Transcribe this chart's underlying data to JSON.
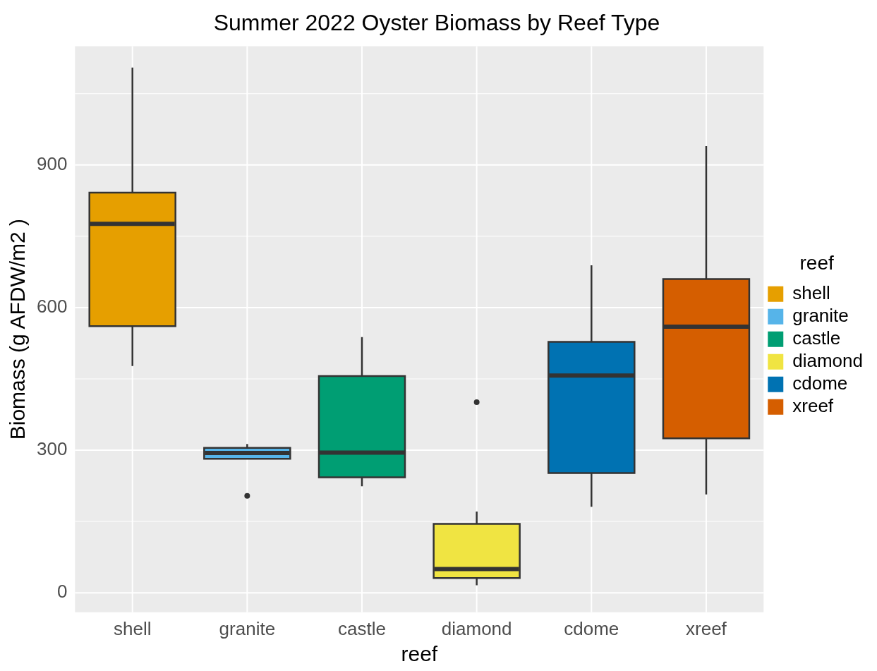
{
  "chart_data": {
    "type": "box",
    "title": "Summer 2022 Oyster Biomass by Reef Type",
    "xlabel": "reef",
    "ylabel": "Biomass (g AFDW/m2 )",
    "legend_title": "reef",
    "categories": [
      "shell",
      "granite",
      "castle",
      "diamond",
      "cdome",
      "xreef"
    ],
    "series": [
      {
        "name": "shell",
        "color": "#e69f00",
        "boxes": [
          {
            "low": 477,
            "q1": 561,
            "median": 776,
            "q3": 842,
            "high": 1105
          },
          null,
          null,
          null,
          null,
          null
        ]
      },
      {
        "name": "granite",
        "color": "#56b4e9",
        "boxes": [
          null,
          {
            "low": 282,
            "q1": 282,
            "median": 294,
            "q3": 305,
            "high": 313,
            "outliers": [
              204
            ]
          },
          null,
          null,
          null,
          null
        ]
      },
      {
        "name": "castle",
        "color": "#009e73",
        "boxes": [
          null,
          null,
          {
            "low": 224,
            "q1": 243,
            "median": 295,
            "q3": 456,
            "high": 538
          },
          null,
          null,
          null
        ]
      },
      {
        "name": "diamond",
        "color": "#f0e442",
        "boxes": [
          null,
          null,
          null,
          {
            "low": 16,
            "q1": 31,
            "median": 50,
            "q3": 145,
            "high": 171,
            "outliers": [
              401
            ]
          },
          null,
          null
        ]
      },
      {
        "name": "cdome",
        "color": "#0072b2",
        "boxes": [
          null,
          null,
          null,
          null,
          {
            "low": 181,
            "q1": 252,
            "median": 457,
            "q3": 528,
            "high": 689
          },
          null
        ]
      },
      {
        "name": "xreef",
        "color": "#d55e00",
        "boxes": [
          null,
          null,
          null,
          null,
          null,
          {
            "low": 207,
            "q1": 325,
            "median": 560,
            "q3": 660,
            "high": 940
          }
        ]
      }
    ],
    "ylim": [
      -41,
      1150
    ],
    "yticks": [
      0,
      300,
      600,
      900
    ],
    "grid": true,
    "legend": "right"
  }
}
